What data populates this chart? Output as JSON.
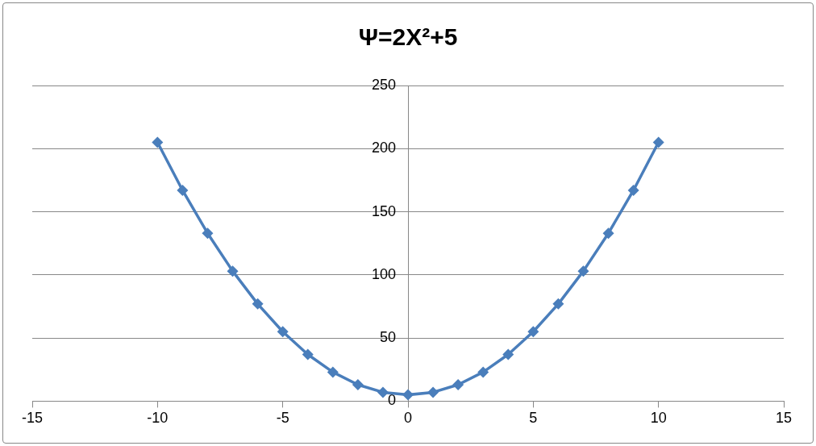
{
  "chart_data": {
    "type": "line",
    "title": "Ψ=2X²+5",
    "x": [
      -10,
      -9,
      -8,
      -7,
      -6,
      -5,
      -4,
      -3,
      -2,
      -1,
      0,
      1,
      2,
      3,
      4,
      5,
      6,
      7,
      8,
      9,
      10
    ],
    "series": [
      {
        "color": "#4a7ebb",
        "values": [
          205,
          167,
          133,
          103,
          77,
          55,
          37,
          23,
          13,
          7,
          5,
          7,
          13,
          23,
          37,
          55,
          77,
          103,
          133,
          167,
          205
        ]
      }
    ],
    "xlim": [
      -15,
      15
    ],
    "xticks": [
      -15,
      -10,
      -5,
      0,
      5,
      10,
      15
    ],
    "ylim": [
      0,
      250
    ],
    "yticks": [
      0,
      50,
      100,
      150,
      200,
      250
    ],
    "grid": "y",
    "legend": false,
    "marker": "diamond",
    "line_style": "solid"
  }
}
